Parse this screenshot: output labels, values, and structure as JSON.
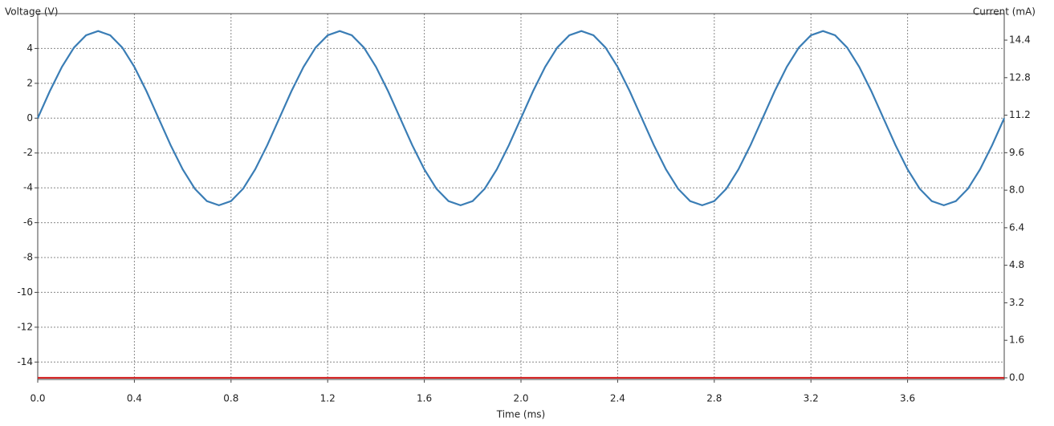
{
  "chart_data": {
    "type": "line",
    "y_label": "Voltage (V)",
    "y2_label": "Current (mA)",
    "x_label": "Time (ms)",
    "x": [
      0,
      0.05,
      0.1,
      0.15,
      0.2,
      0.25,
      0.3,
      0.35,
      0.4,
      0.45,
      0.5,
      0.55,
      0.6,
      0.65,
      0.7,
      0.75,
      0.8,
      0.85,
      0.9,
      0.95,
      1,
      1.05,
      1.1,
      1.15,
      1.2,
      1.25,
      1.3,
      1.35,
      1.4,
      1.45,
      1.5,
      1.55,
      1.6,
      1.65,
      1.7,
      1.75,
      1.8,
      1.85,
      1.9,
      1.95,
      2,
      2.05,
      2.1,
      2.15,
      2.2,
      2.25,
      2.3,
      2.35,
      2.4,
      2.45,
      2.5,
      2.55,
      2.6,
      2.65,
      2.7,
      2.75,
      2.8,
      2.85,
      2.9,
      2.95,
      3,
      3.05,
      3.1,
      3.15,
      3.2,
      3.25,
      3.3,
      3.35,
      3.4,
      3.45,
      3.5,
      3.55,
      3.6,
      3.65,
      3.7,
      3.75,
      3.8,
      3.85,
      3.9,
      3.95,
      4
    ],
    "series": [
      {
        "name": "Voltage",
        "color": "#3a7db5",
        "axis": "y",
        "values": [
          0,
          1.55,
          2.94,
          4.05,
          4.76,
          5,
          4.76,
          4.05,
          2.94,
          1.55,
          0,
          -1.55,
          -2.94,
          -4.05,
          -4.76,
          -5,
          -4.76,
          -4.05,
          -2.94,
          -1.55,
          0,
          1.55,
          2.94,
          4.05,
          4.76,
          5,
          4.76,
          4.05,
          2.94,
          1.55,
          0,
          -1.55,
          -2.94,
          -4.05,
          -4.76,
          -5,
          -4.76,
          -4.05,
          -2.94,
          -1.55,
          0,
          1.55,
          2.94,
          4.05,
          4.76,
          5,
          4.76,
          4.05,
          2.94,
          1.55,
          0,
          -1.55,
          -2.94,
          -4.05,
          -4.76,
          -5,
          -4.76,
          -4.05,
          -2.94,
          -1.55,
          0,
          1.55,
          2.94,
          4.05,
          4.76,
          5,
          4.76,
          4.05,
          2.94,
          1.55,
          0,
          -1.55,
          -2.94,
          -4.05,
          -4.76,
          -5,
          -4.76,
          -4.05,
          -2.94,
          -1.55,
          0
        ]
      },
      {
        "name": "Current",
        "color": "#d22020",
        "axis": "y2",
        "values": [
          0,
          0,
          0,
          0,
          0,
          0,
          0,
          0,
          0,
          0,
          0,
          0,
          0,
          0,
          0,
          0,
          0,
          0,
          0,
          0,
          0,
          0,
          0,
          0,
          0,
          0,
          0,
          0,
          0,
          0,
          0,
          0,
          0,
          0,
          0,
          0,
          0,
          0,
          0,
          0,
          0,
          0,
          0,
          0,
          0,
          0,
          0,
          0,
          0,
          0,
          0,
          0,
          0,
          0,
          0,
          0,
          0,
          0,
          0,
          0,
          0,
          0,
          0,
          0,
          0,
          0,
          0,
          0,
          0,
          0,
          0,
          0,
          0,
          0,
          0,
          0,
          0,
          0,
          0,
          0,
          0
        ]
      }
    ],
    "xlim": [
      0,
      4
    ],
    "xticks": [
      {
        "value": 0,
        "label": "0.0"
      },
      0.4,
      0.8,
      1.2,
      1.6,
      {
        "value": 2,
        "label": "2.0"
      },
      2.4,
      2.8,
      3.2,
      3.6
    ],
    "ylim": [
      -15,
      6
    ],
    "yticks": [
      4,
      2,
      0,
      -2,
      -4,
      -6,
      -8,
      -10,
      -12,
      -14
    ],
    "y2lim": [
      -0.07,
      15.53
    ],
    "y2ticks": [
      {
        "value": 0,
        "label": "0.0"
      },
      1.6,
      3.2,
      4.8,
      6.4,
      {
        "value": 8,
        "label": "8.0"
      },
      9.6,
      11.2,
      12.8,
      14.4
    ],
    "grid": true
  }
}
